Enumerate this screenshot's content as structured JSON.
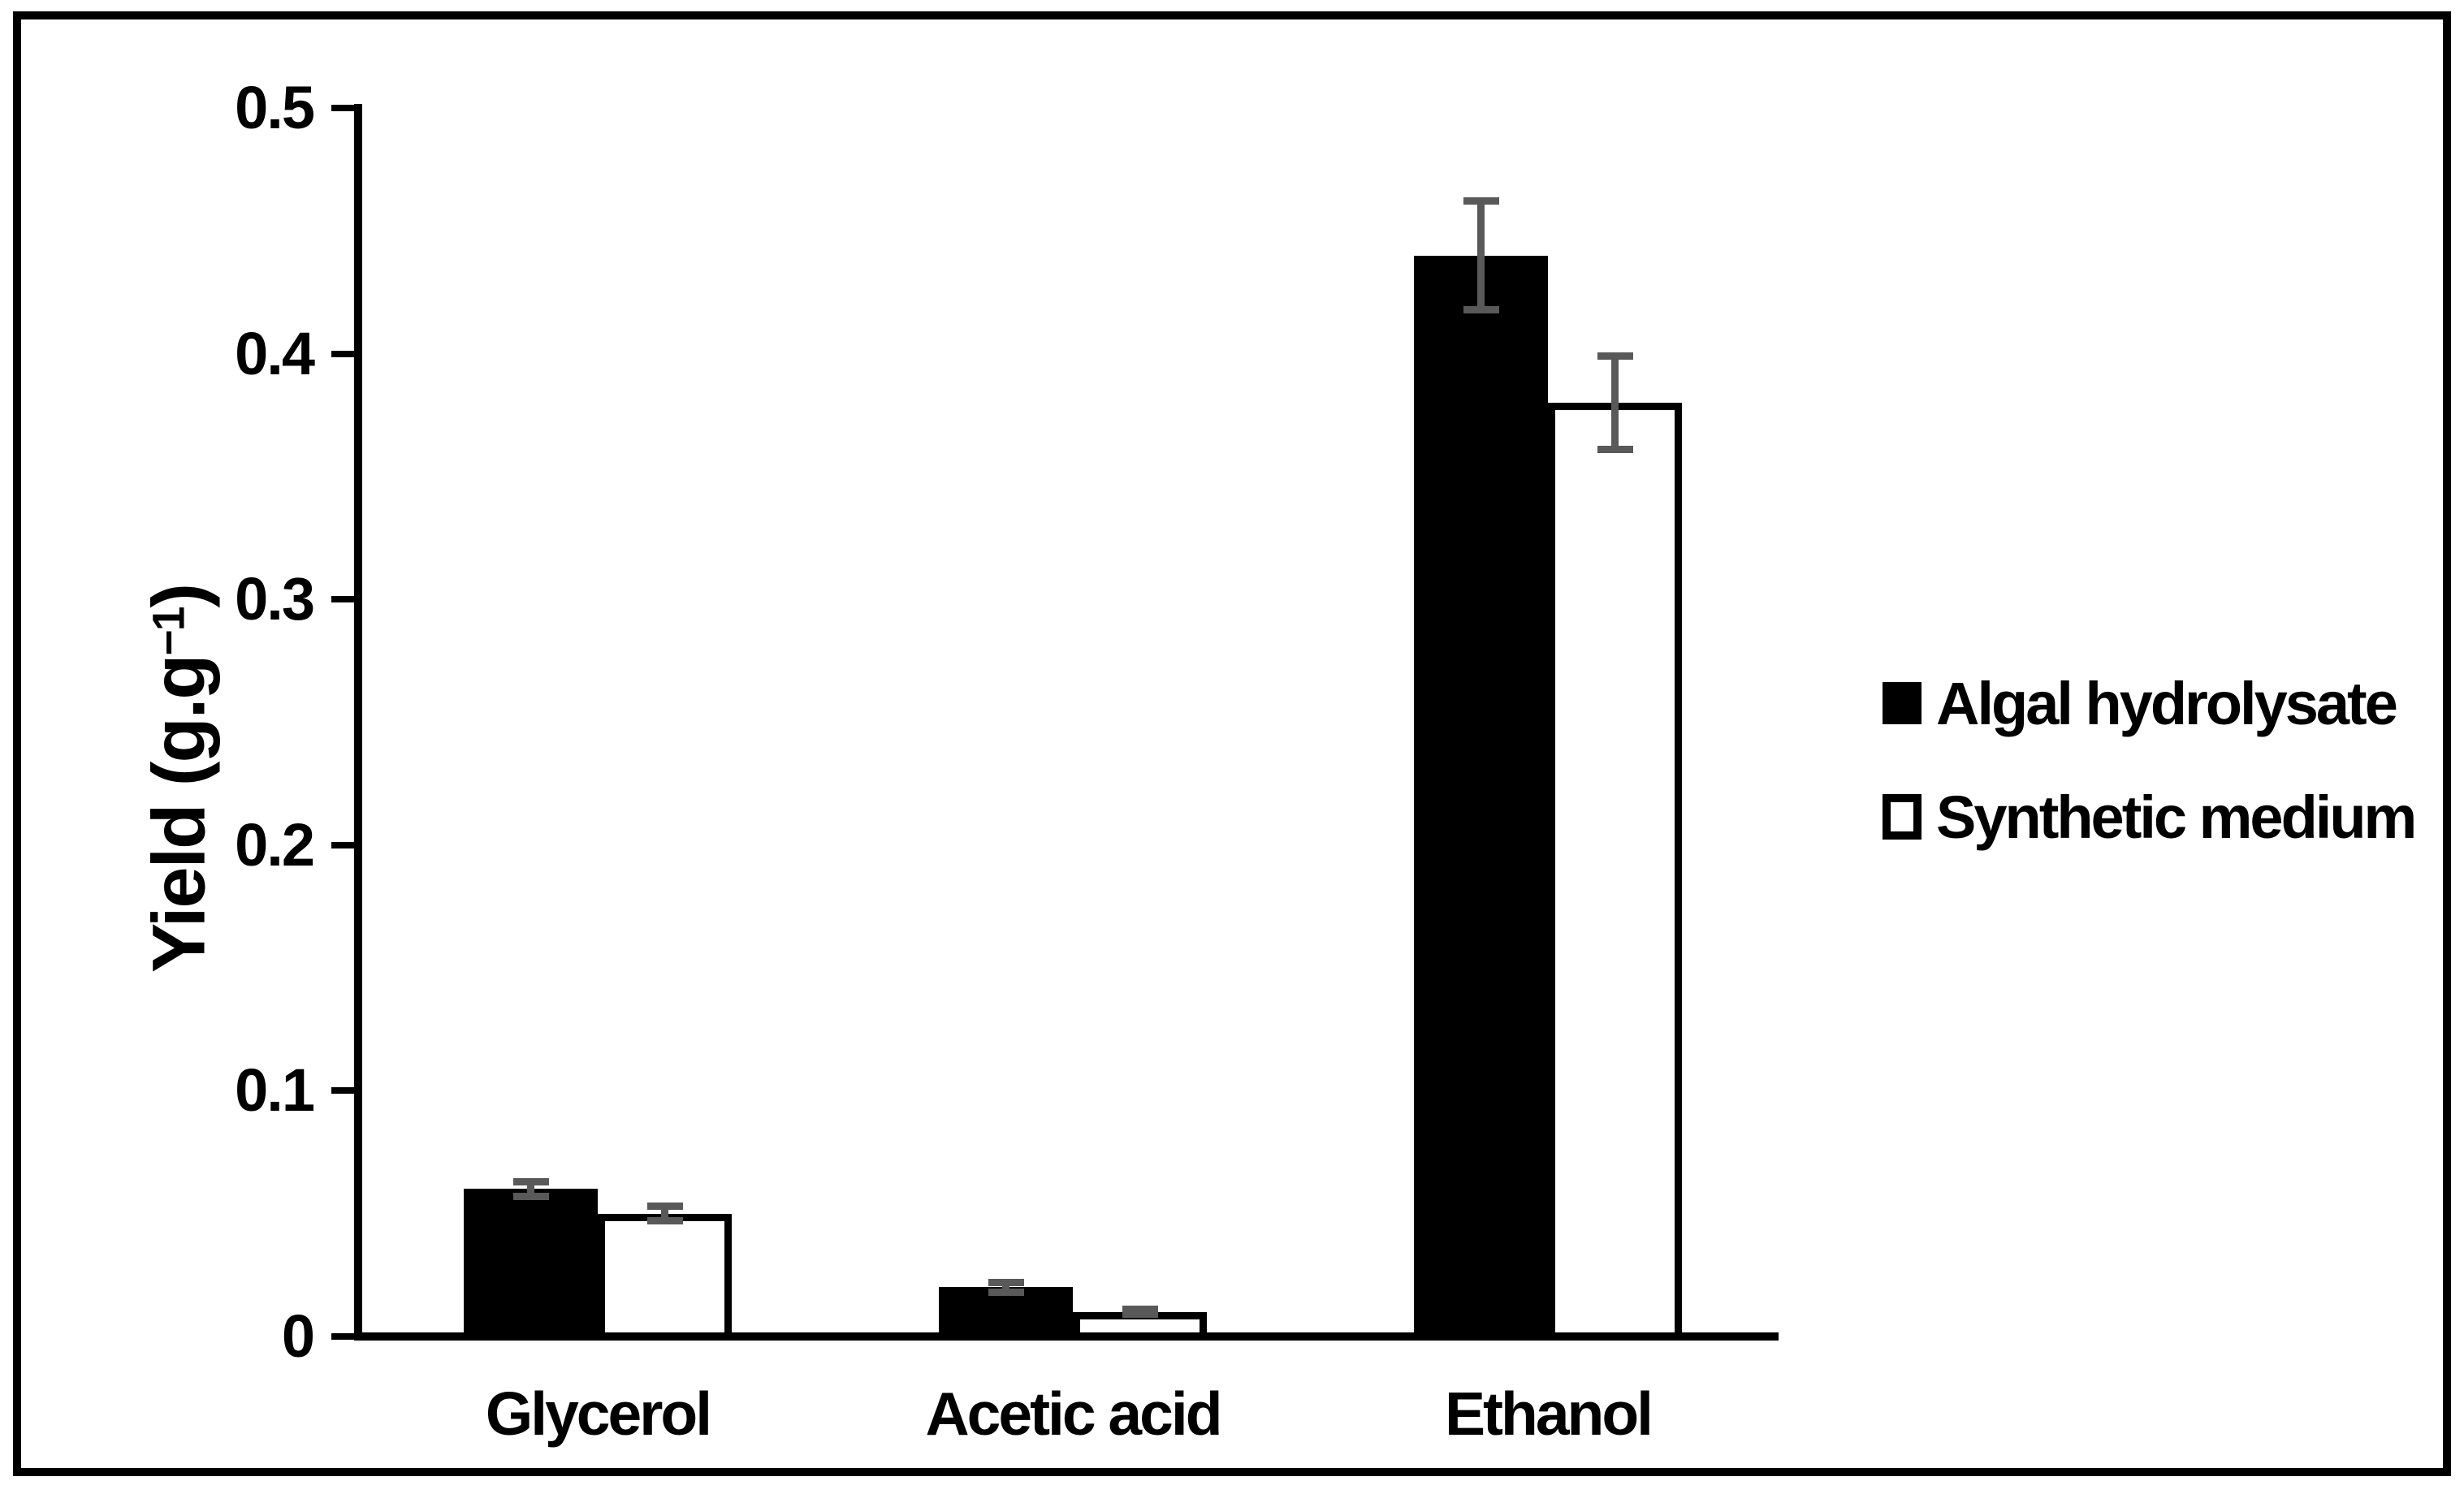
{
  "chart_data": {
    "type": "bar",
    "title": "",
    "xlabel": "",
    "ylabel": {
      "prefix": "Yield (g.g",
      "superscript": "−1",
      "suffix": ")"
    },
    "ylim": [
      0,
      0.5
    ],
    "yticks": [
      0,
      0.1,
      0.2,
      0.3,
      0.4,
      0.5
    ],
    "ytick_labels": [
      "0",
      "0.1",
      "0.2",
      "0.3",
      "0.4",
      "0.5"
    ],
    "categories": [
      "Glycerol",
      "Acetic acid",
      "Ethanol"
    ],
    "series": [
      {
        "name": "Algal hydrolysate",
        "fill": "#000000",
        "values": [
          0.06,
          0.02,
          0.44
        ],
        "error": [
          0.003,
          0.002,
          0.022
        ]
      },
      {
        "name": "Synthetic medium",
        "fill": "#ffffff",
        "outline": "#000000",
        "values": [
          0.05,
          0.01,
          0.38
        ],
        "error": [
          0.003,
          0.001,
          0.019
        ]
      }
    ],
    "grid": false,
    "legend_position": "right-middle",
    "error_bar_color": "#595959",
    "axis_color": "#000000",
    "background_color": "#ffffff"
  }
}
